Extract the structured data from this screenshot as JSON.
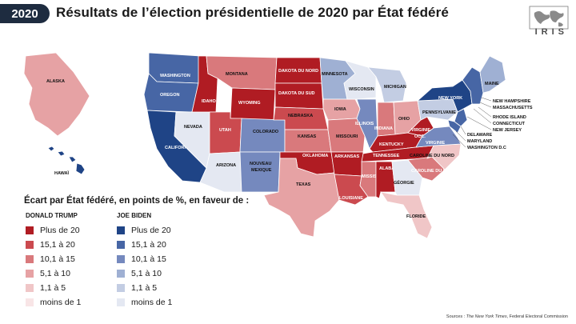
{
  "header": {
    "year": "2020",
    "title": "Résultats de l’élection présidentielle de 2020 par État fédéré"
  },
  "logo": {
    "text": "IRIS"
  },
  "colors": {
    "r6": "#b01c23",
    "r5": "#cb4a4f",
    "r4": "#d9797c",
    "r3": "#e6a2a4",
    "r2": "#f0c6c7",
    "r1": "#f8e5e6",
    "d6": "#1f4486",
    "d5": "#4766a5",
    "d4": "#7589be",
    "d3": "#9fb0d3",
    "d2": "#c3cde3",
    "d1": "#e4e8f2"
  },
  "map": {
    "states": [
      {
        "name": "WASHINGTON",
        "lean": "d5"
      },
      {
        "name": "OREGON",
        "lean": "d5"
      },
      {
        "name": "CALIFORNIA",
        "lean": "d6"
      },
      {
        "name": "NEVADA",
        "lean": "d1"
      },
      {
        "name": "IDAHO",
        "lean": "r6"
      },
      {
        "name": "MONTANA",
        "lean": "r4"
      },
      {
        "name": "WYOMING",
        "lean": "r6"
      },
      {
        "name": "UTAH",
        "lean": "r5"
      },
      {
        "name": "ARIZONA",
        "lean": "d1"
      },
      {
        "name": "COLORADO",
        "lean": "d4"
      },
      {
        "name": "NOUVEAU MEXIQUE",
        "lean": "d4"
      },
      {
        "name": "DAKOTA DU NORD",
        "lean": "r6"
      },
      {
        "name": "DAKOTA DU SUD",
        "lean": "r6"
      },
      {
        "name": "NEBRASKA",
        "lean": "r5"
      },
      {
        "name": "KANSAS",
        "lean": "r4"
      },
      {
        "name": "OKLAHOMA",
        "lean": "r6"
      },
      {
        "name": "TEXAS",
        "lean": "r3"
      },
      {
        "name": "MINNESOTA",
        "lean": "d3"
      },
      {
        "name": "IOWA",
        "lean": "r3"
      },
      {
        "name": "MISSOURI",
        "lean": "r4"
      },
      {
        "name": "ARKANSAS",
        "lean": "r6"
      },
      {
        "name": "LOUISIANE",
        "lean": "r5"
      },
      {
        "name": "WISCONSIN",
        "lean": "d1"
      },
      {
        "name": "ILLINOIS",
        "lean": "d4"
      },
      {
        "name": "MICHIGAN",
        "lean": "d2"
      },
      {
        "name": "INDIANA",
        "lean": "r4"
      },
      {
        "name": "OHIO",
        "lean": "r3"
      },
      {
        "name": "KENTUCKY",
        "lean": "r6"
      },
      {
        "name": "TENNESSEE",
        "lean": "r6"
      },
      {
        "name": "MISSISSIPPI",
        "lean": "r4"
      },
      {
        "name": "ALABAMA",
        "lean": "r6"
      },
      {
        "name": "GÉORGIE",
        "lean": "d1"
      },
      {
        "name": "FLORIDE",
        "lean": "r2"
      },
      {
        "name": "CAROLINE DU SUD",
        "lean": "r4"
      },
      {
        "name": "CAROLINE DU NORD",
        "lean": "r2"
      },
      {
        "name": "VIRGINIE",
        "lean": "d4"
      },
      {
        "name": "VIRGINIE OCC.",
        "lean": "r6"
      },
      {
        "name": "PENNSYLVANIE",
        "lean": "d2"
      },
      {
        "name": "NEW YORK",
        "lean": "d6"
      },
      {
        "name": "MAINE",
        "lean": "d3"
      },
      {
        "name": "ALASKA",
        "lean": "r3"
      },
      {
        "name": "HAWAÏ",
        "lean": "d6"
      }
    ],
    "northeast_labels": [
      "NEW HAMPSHIRE",
      "MASSACHUSETTS",
      "RHODE ISLAND",
      "CONNECTICUT",
      "NEW JERSEY",
      "DELAWARE",
      "MARYLAND",
      "WASHINGTON D.C"
    ]
  },
  "legend": {
    "title": "Écart par État fédéré, en points de %, en faveur de :",
    "trump_header": "DONALD TRUMP",
    "biden_header": "JOE BIDEN",
    "trump": [
      {
        "label": "Plus de 20",
        "color": "#b01c23"
      },
      {
        "label": "15,1 à 20",
        "color": "#cb4a4f"
      },
      {
        "label": "10,1 à 15",
        "color": "#d9797c"
      },
      {
        "label": "5,1 à 10",
        "color": "#e6a2a4"
      },
      {
        "label": "1,1 à 5",
        "color": "#f0c6c7"
      },
      {
        "label": "moins de 1",
        "color": "#f8e5e6"
      }
    ],
    "biden": [
      {
        "label": "Plus de 20",
        "color": "#1f4486"
      },
      {
        "label": "15,1 à 20",
        "color": "#4766a5"
      },
      {
        "label": "10,1 à 15",
        "color": "#7589be"
      },
      {
        "label": "5,1 à 10",
        "color": "#9fb0d3"
      },
      {
        "label": "1,1 à 5",
        "color": "#c3cde3"
      },
      {
        "label": "moins de 1",
        "color": "#e4e8f2"
      }
    ]
  },
  "sources": {
    "prefix": "Sources : ",
    "italic": "The New York Times",
    "suffix": ", Federal Electoral Commission"
  }
}
